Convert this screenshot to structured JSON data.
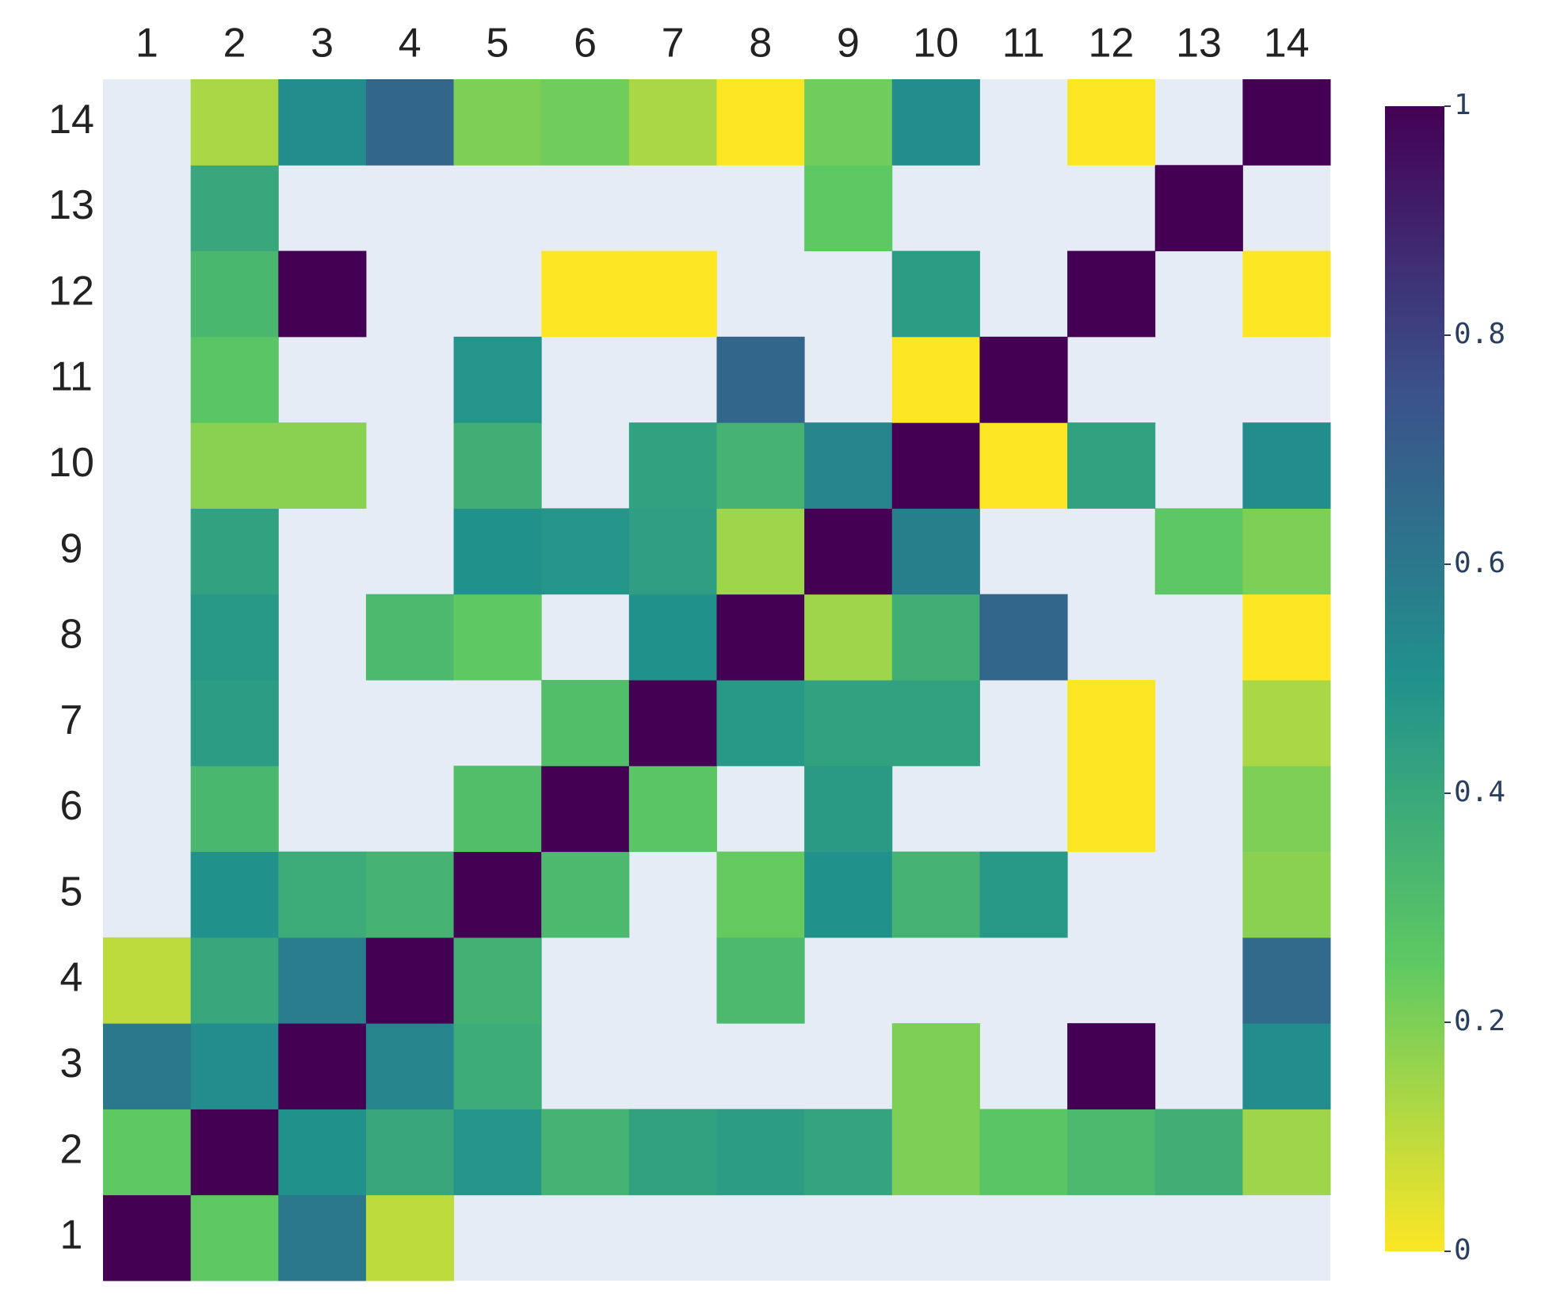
{
  "chart_data": {
    "type": "heatmap",
    "x": [
      1,
      2,
      3,
      4,
      5,
      6,
      7,
      8,
      9,
      10,
      11,
      12,
      13,
      14
    ],
    "y": [
      1,
      2,
      3,
      4,
      5,
      6,
      7,
      8,
      9,
      10,
      11,
      12,
      13,
      14
    ],
    "z": [
      [
        1,
        0.25,
        0.6,
        0.1,
        null,
        null,
        null,
        null,
        null,
        null,
        null,
        null,
        null,
        null
      ],
      [
        0.25,
        1,
        0.5,
        0.4,
        0.48,
        0.35,
        0.43,
        0.45,
        0.42,
        0.2,
        0.27,
        0.32,
        0.37,
        0.15
      ],
      [
        0.6,
        0.52,
        1,
        0.55,
        0.38,
        null,
        null,
        null,
        null,
        0.2,
        null,
        1,
        null,
        0.52
      ],
      [
        0.1,
        0.4,
        0.58,
        1,
        0.36,
        null,
        null,
        0.32,
        null,
        null,
        null,
        null,
        null,
        0.65
      ],
      [
        null,
        0.5,
        0.38,
        0.35,
        1,
        0.32,
        null,
        0.24,
        0.5,
        0.35,
        0.47,
        null,
        null,
        0.18
      ],
      [
        null,
        0.33,
        null,
        null,
        0.3,
        1,
        0.27,
        null,
        0.46,
        null,
        null,
        0,
        null,
        0.2
      ],
      [
        null,
        0.45,
        null,
        null,
        null,
        0.3,
        1,
        0.47,
        0.43,
        0.43,
        null,
        0,
        null,
        0.13
      ],
      [
        null,
        0.47,
        null,
        0.32,
        0.25,
        null,
        0.5,
        1,
        0.15,
        0.37,
        0.67,
        null,
        null,
        0
      ],
      [
        null,
        0.43,
        null,
        null,
        0.5,
        0.48,
        0.44,
        0.15,
        1,
        0.57,
        null,
        null,
        0.26,
        0.2
      ],
      [
        null,
        0.18,
        0.18,
        null,
        0.37,
        null,
        0.43,
        0.35,
        0.55,
        1,
        0,
        0.43,
        null,
        0.52
      ],
      [
        null,
        0.27,
        null,
        null,
        0.48,
        null,
        null,
        0.67,
        null,
        0,
        1,
        null,
        null,
        null
      ],
      [
        null,
        0.33,
        1,
        null,
        null,
        0,
        0,
        null,
        null,
        0.45,
        null,
        1,
        null,
        0
      ],
      [
        null,
        0.4,
        null,
        null,
        null,
        null,
        null,
        null,
        0.25,
        null,
        null,
        null,
        1,
        null
      ],
      [
        null,
        0.13,
        0.52,
        0.67,
        0.2,
        0.22,
        0.13,
        0,
        0.22,
        0.52,
        null,
        0,
        null,
        1
      ]
    ],
    "zlim": [
      0,
      1
    ],
    "zticks": [
      0,
      0.2,
      0.4,
      0.6,
      0.8,
      1
    ],
    "colorscale": [
      "#fde725",
      "#5ec962",
      "#21918c",
      "#3b528b",
      "#440154"
    ],
    "missing_color": "#e5ecf6"
  }
}
